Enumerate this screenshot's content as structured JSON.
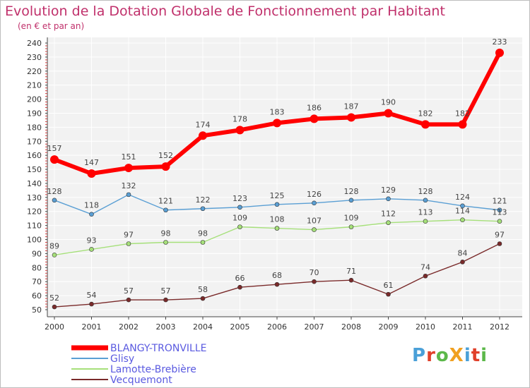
{
  "page": {
    "title": "Evolution de la Dotation Globale de Fonctionnement par Habitant",
    "subtitle": "(en € et par an)"
  },
  "logo": {
    "text": "ProXiti",
    "colors": [
      "#4aa0d8",
      "#e0402a",
      "#5cb84a",
      "#f0a020",
      "#4aa0d8",
      "#e0402a",
      "#5cb84a"
    ]
  },
  "chart_data": {
    "type": "line",
    "title": "Evolution de la Dotation Globale de Fonctionnement par Habitant",
    "subtitle": "(en € et par an)",
    "xlabel": "",
    "ylabel": "",
    "ylim": [
      50,
      240
    ],
    "yticks": [
      50,
      60,
      70,
      80,
      90,
      100,
      110,
      120,
      130,
      140,
      150,
      160,
      170,
      180,
      190,
      200,
      210,
      220,
      230,
      240
    ],
    "grid": true,
    "legend_position": "bottom-left",
    "x": [
      "2000",
      "2001",
      "2002",
      "2003",
      "2004",
      "2005",
      "2006",
      "2007",
      "2008",
      "2009",
      "2010",
      "2011",
      "2012"
    ],
    "series": [
      {
        "name": "BLANGY-TRONVILLE",
        "color": "#ff0000",
        "values": [
          157,
          147,
          151,
          152,
          174,
          178,
          183,
          186,
          187,
          190,
          182,
          182,
          233
        ]
      },
      {
        "name": "Glisy",
        "color": "#5a9fd4",
        "values": [
          128,
          118,
          132,
          121,
          122,
          123,
          125,
          126,
          128,
          129,
          128,
          124,
          121
        ]
      },
      {
        "name": "Lamotte-Brebière",
        "color": "#a6e07a",
        "values": [
          89,
          93,
          97,
          98,
          98,
          109,
          108,
          107,
          109,
          112,
          113,
          114,
          113
        ]
      },
      {
        "name": "Vecquemont",
        "color": "#7a2a2a",
        "values": [
          52,
          54,
          57,
          57,
          58,
          66,
          68,
          70,
          71,
          61,
          74,
          84,
          97
        ]
      }
    ]
  }
}
